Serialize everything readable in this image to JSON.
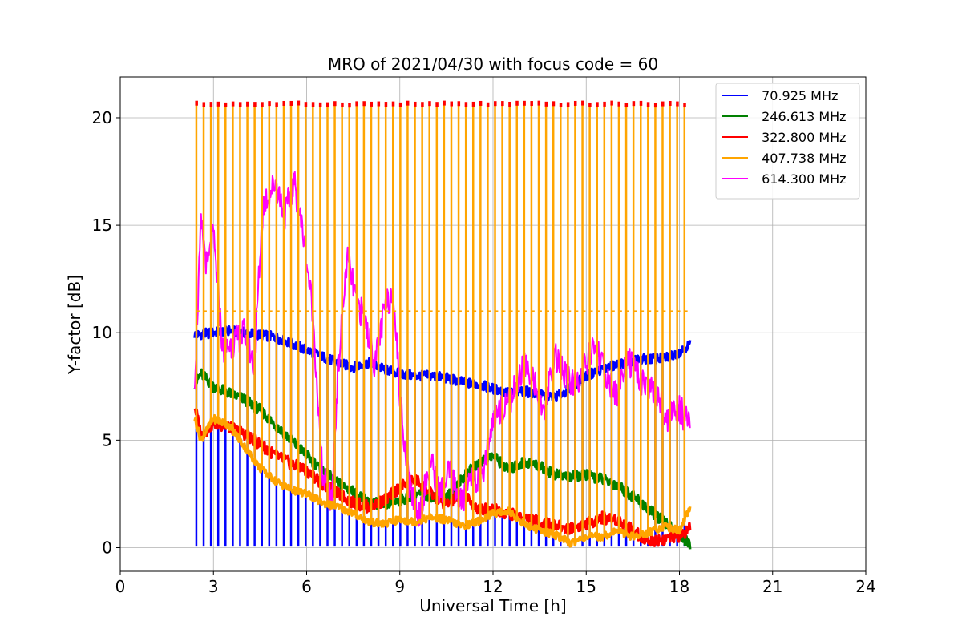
{
  "chart_data": {
    "type": "line",
    "title": "MRO of 2021/04/30 with focus code = 60",
    "xlabel": "Universal Time [h]",
    "ylabel": "Y-factor [dB]",
    "xlim": [
      0,
      24
    ],
    "ylim": [
      -1.1,
      21.9
    ],
    "xticks": [
      0,
      3,
      6,
      9,
      12,
      15,
      18,
      21,
      24
    ],
    "yticks": [
      0,
      5,
      10,
      15,
      20
    ],
    "grid": true,
    "legend_position": "top-right",
    "series": [
      {
        "name": " 70.925 MHz",
        "color": "#0000ff",
        "x": [
          2.4,
          3.0,
          3.5,
          4.0,
          4.5,
          5.0,
          5.5,
          6.0,
          6.5,
          7.0,
          7.5,
          8.0,
          8.5,
          9.0,
          9.5,
          10.0,
          10.5,
          11.0,
          11.5,
          12.0,
          12.5,
          13.0,
          13.5,
          14.0,
          14.5,
          15.0,
          15.5,
          16.0,
          16.5,
          17.0,
          17.5,
          18.0,
          18.35
        ],
        "y": [
          9.9,
          10.0,
          10.1,
          10.0,
          9.9,
          9.8,
          9.5,
          9.2,
          8.9,
          8.6,
          8.4,
          8.6,
          8.3,
          8.1,
          8.0,
          8.0,
          7.9,
          7.7,
          7.6,
          7.4,
          7.2,
          7.3,
          7.1,
          7.0,
          7.4,
          8.0,
          8.3,
          8.5,
          8.7,
          8.8,
          8.8,
          9.1,
          9.5
        ]
      },
      {
        "name": " 246.613 MHz",
        "color": "#008000",
        "x": [
          2.4,
          2.6,
          3.0,
          3.5,
          4.0,
          4.5,
          5.0,
          5.5,
          6.0,
          6.5,
          7.0,
          7.5,
          8.0,
          8.5,
          9.0,
          9.5,
          10.0,
          10.5,
          11.0,
          11.5,
          12.0,
          12.5,
          13.0,
          13.5,
          14.0,
          14.5,
          15.0,
          15.5,
          16.0,
          16.5,
          17.0,
          17.5,
          18.0,
          18.35
        ],
        "y": [
          7.6,
          8.1,
          7.5,
          7.2,
          6.9,
          6.4,
          5.7,
          5.0,
          4.3,
          3.6,
          3.0,
          2.6,
          2.1,
          2.0,
          2.2,
          2.5,
          2.4,
          2.3,
          3.2,
          3.9,
          4.3,
          3.6,
          4.0,
          3.8,
          3.4,
          3.3,
          3.4,
          3.2,
          2.9,
          2.4,
          1.8,
          1.2,
          0.6,
          0.1
        ]
      },
      {
        "name": " 322.800 MHz",
        "color": "#ff0000",
        "x": [
          2.4,
          2.6,
          3.0,
          3.5,
          4.0,
          4.5,
          5.0,
          5.5,
          6.0,
          6.5,
          7.0,
          7.5,
          8.0,
          8.5,
          9.0,
          9.5,
          10.0,
          10.5,
          11.0,
          11.5,
          12.0,
          12.5,
          13.0,
          13.5,
          14.0,
          14.5,
          15.0,
          15.5,
          16.0,
          16.5,
          17.0,
          17.5,
          18.0,
          18.35
        ],
        "y": [
          6.6,
          5.2,
          5.8,
          5.6,
          5.3,
          4.8,
          4.3,
          3.9,
          3.6,
          3.0,
          2.5,
          2.1,
          1.9,
          2.2,
          2.8,
          3.2,
          2.5,
          2.0,
          2.5,
          1.8,
          1.8,
          1.6,
          1.4,
          1.2,
          1.0,
          0.9,
          1.1,
          1.4,
          1.3,
          0.8,
          0.3,
          0.4,
          0.5,
          0.9
        ]
      },
      {
        "name": " 407.738 MHz",
        "color": "#ffa500",
        "x": [
          2.4,
          2.6,
          3.0,
          3.5,
          4.0,
          4.5,
          5.0,
          5.5,
          6.0,
          6.5,
          7.0,
          7.5,
          8.0,
          8.5,
          9.0,
          9.5,
          10.0,
          10.5,
          11.0,
          11.5,
          12.0,
          12.5,
          13.0,
          13.5,
          14.0,
          14.5,
          15.0,
          15.5,
          16.0,
          16.5,
          17.0,
          17.5,
          18.0,
          18.35
        ],
        "y": [
          6.0,
          5.0,
          6.0,
          5.7,
          4.7,
          3.7,
          3.1,
          2.7,
          2.5,
          2.1,
          1.9,
          1.6,
          1.2,
          1.1,
          1.3,
          1.2,
          1.4,
          1.3,
          1.0,
          1.2,
          1.6,
          1.7,
          1.1,
          0.8,
          0.6,
          0.2,
          0.5,
          0.5,
          0.8,
          0.5,
          0.7,
          1.0,
          0.8,
          1.9
        ],
        "pulse_peak": 20.6,
        "pulse_plateau": 11.0
      },
      {
        "name": " 614.300 MHz",
        "color": "#ff00ff",
        "x": [
          2.4,
          2.6,
          2.8,
          3.0,
          3.3,
          3.6,
          4.0,
          4.3,
          4.6,
          5.0,
          5.3,
          5.6,
          5.9,
          6.2,
          6.5,
          6.8,
          7.0,
          7.3,
          7.6,
          7.9,
          8.2,
          8.5,
          8.8,
          9.0,
          9.3,
          9.6,
          10.0,
          10.3,
          10.6,
          11.0,
          11.3,
          11.6,
          12.0,
          12.3,
          12.6,
          13.0,
          13.3,
          13.6,
          14.0,
          14.3,
          14.6,
          15.0,
          15.3,
          15.6,
          16.0,
          16.3,
          16.6,
          17.0,
          17.3,
          17.6,
          18.0,
          18.35
        ],
        "y": [
          8.0,
          15.0,
          13.0,
          14.5,
          9.2,
          9.5,
          10.0,
          8.5,
          16.0,
          17.0,
          15.5,
          17.0,
          14.5,
          11.0,
          3.5,
          2.0,
          8.0,
          13.5,
          11.5,
          10.5,
          8.5,
          11.0,
          12.0,
          7.0,
          3.0,
          1.5,
          4.0,
          2.5,
          3.5,
          2.0,
          3.5,
          3.0,
          6.0,
          6.5,
          7.0,
          8.5,
          8.0,
          6.0,
          9.0,
          8.0,
          7.5,
          8.5,
          9.5,
          8.0,
          7.0,
          9.0,
          8.0,
          7.5,
          7.0,
          6.0,
          6.5,
          5.5
        ]
      }
    ]
  }
}
